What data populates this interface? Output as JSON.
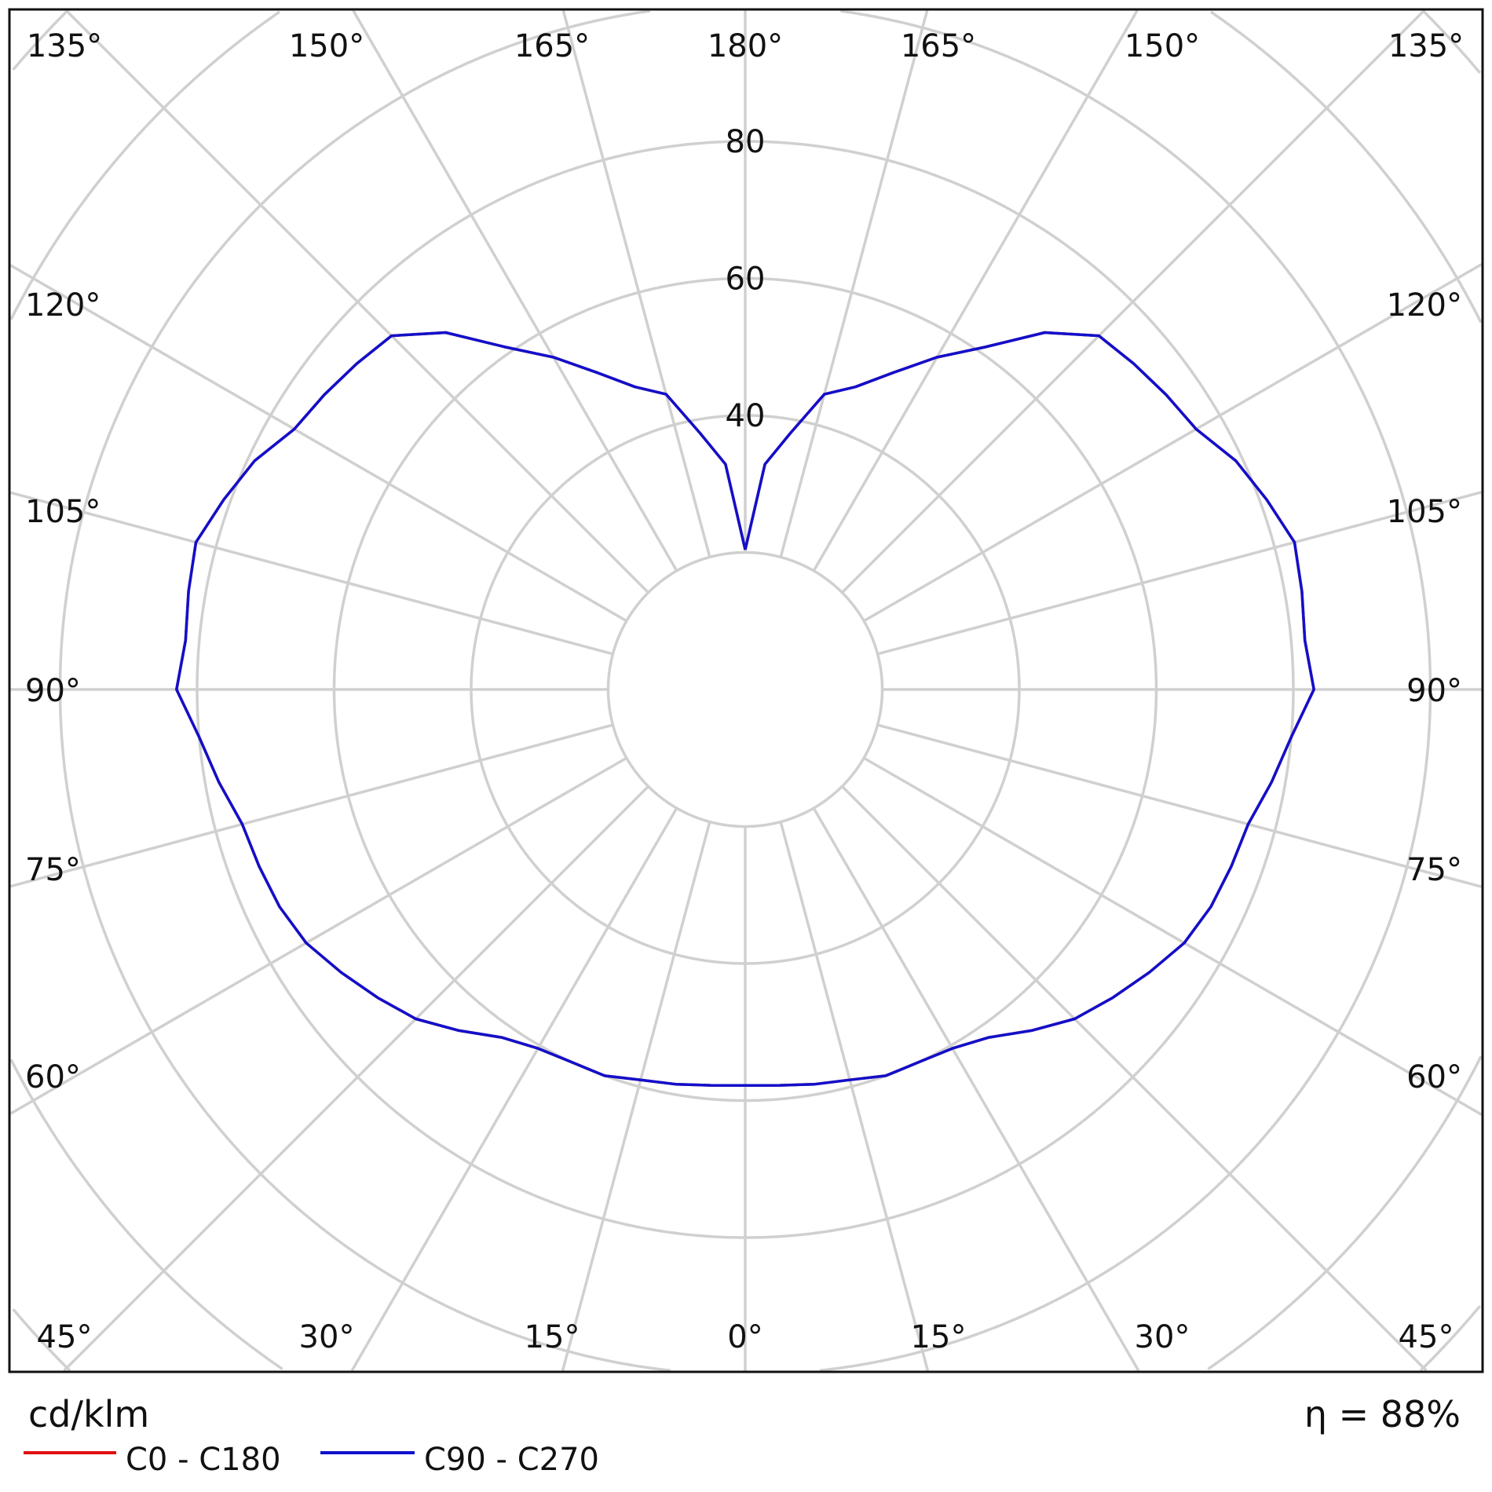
{
  "chart_data": {
    "type": "polar-line",
    "unit_label": "cd/klm",
    "efficiency_label": "η = 88%",
    "radial_ticks": [
      20,
      40,
      60,
      80,
      100,
      120,
      140
    ],
    "radial_tick_labels": [
      "40",
      "60",
      "80"
    ],
    "angle_labels": {
      "top": [
        "135°",
        "150°",
        "165°",
        "180°",
        "165°",
        "150°",
        "135°"
      ],
      "bottom": [
        "45°",
        "30°",
        "15°",
        "0°",
        "15°",
        "30°",
        "45°"
      ],
      "left": [
        "120°",
        "105°",
        "90°",
        "75°",
        "60°"
      ],
      "right": [
        "120°",
        "105°",
        "90°",
        "75°",
        "60°"
      ]
    },
    "grid": true,
    "legend_placement": "bottom-left",
    "gamma": [
      0,
      5,
      10,
      15,
      20,
      25,
      30,
      35,
      40,
      45,
      50,
      55,
      60,
      65,
      70,
      75,
      80,
      85,
      90,
      95,
      100,
      105,
      110,
      115,
      120,
      125,
      130,
      135,
      140,
      145,
      150,
      155,
      160,
      165,
      170,
      175,
      180
    ],
    "series": [
      {
        "name": "C0 - C180",
        "color": "#e01010",
        "values": [
          57.8,
          58,
          58.5,
          59,
          60,
          60,
          60.5,
          62,
          65,
          68,
          70,
          72,
          74,
          75,
          75.5,
          76,
          78,
          80,
          83,
          82,
          82.5,
          83,
          81,
          79,
          76,
          75,
          74,
          73,
          68,
          61,
          56,
          51,
          47,
          44.6,
          38,
          33,
          20.4
        ]
      },
      {
        "name": "C90 - C270",
        "color": "#1010cc",
        "values": [
          57.8,
          58,
          58.5,
          59,
          60,
          60,
          60.5,
          62,
          65,
          68,
          70,
          72,
          74,
          75,
          75.5,
          76,
          78,
          80,
          83,
          82,
          82.5,
          83,
          81,
          79,
          76,
          75,
          74,
          73,
          68,
          61,
          56,
          51,
          47,
          44.6,
          38,
          33,
          20.4
        ]
      }
    ]
  }
}
